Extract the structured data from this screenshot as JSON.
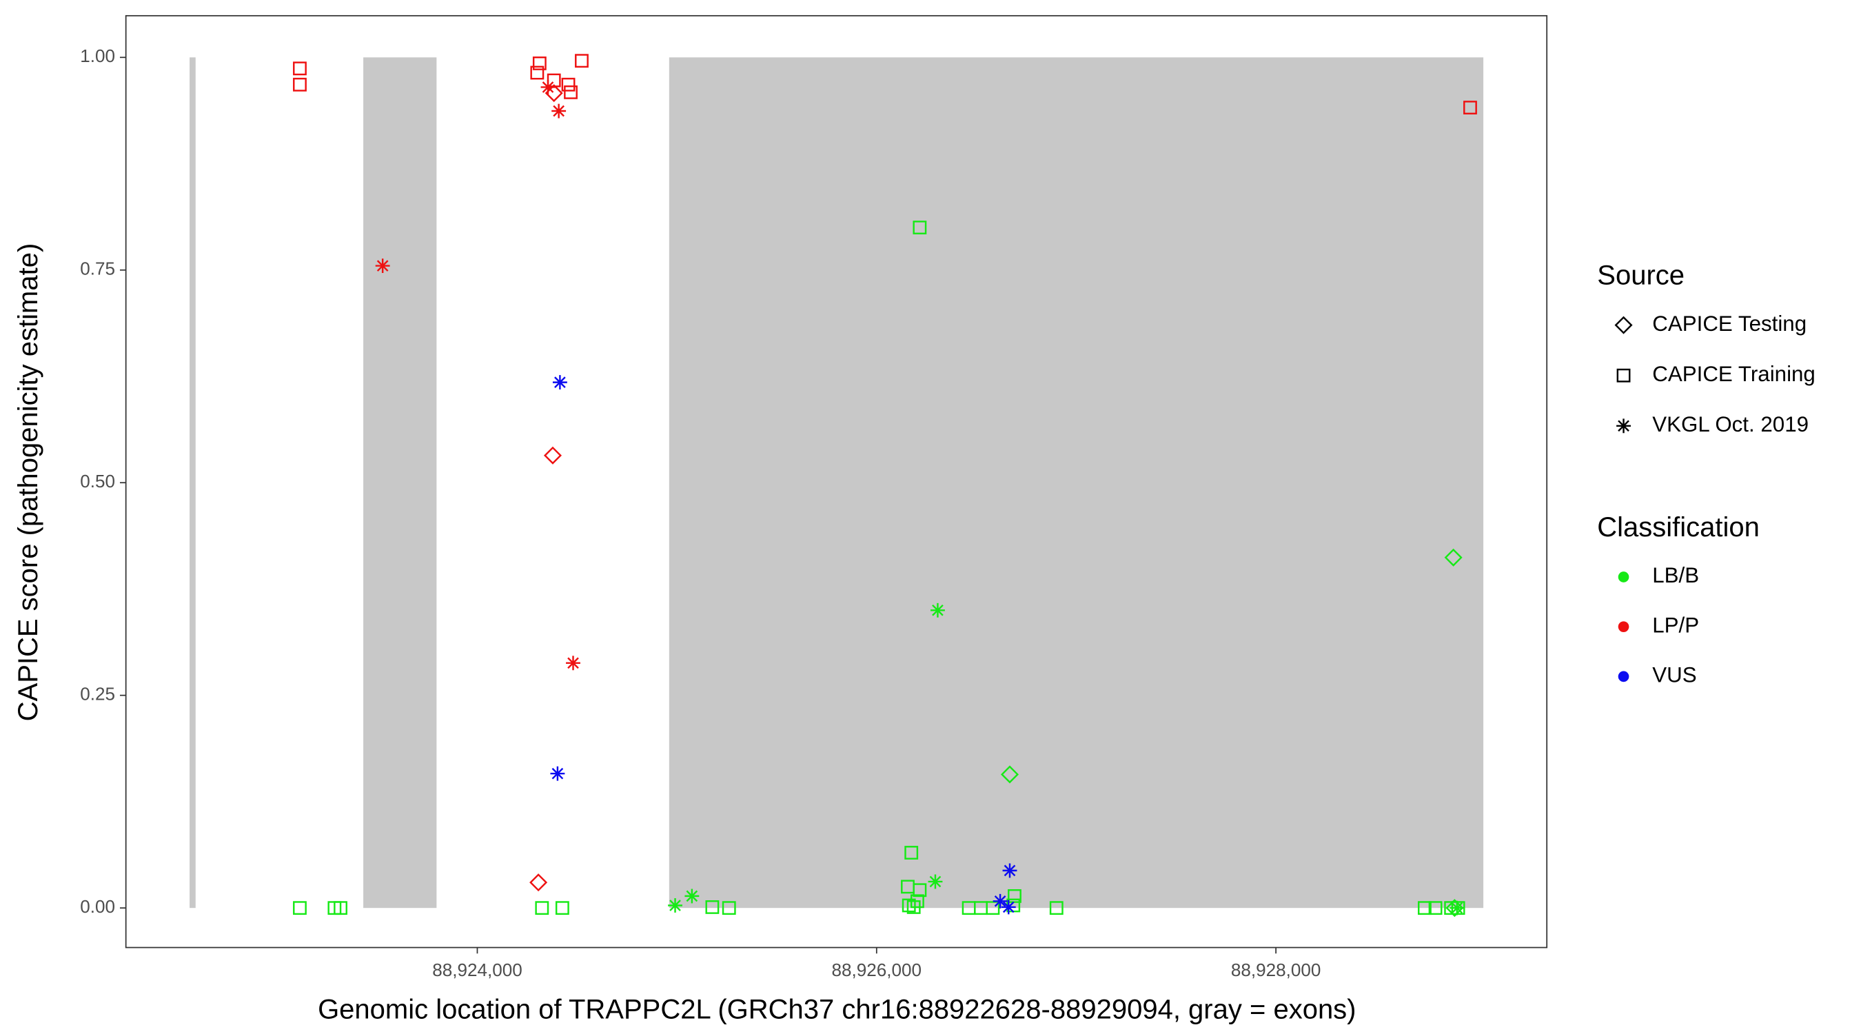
{
  "chart_data": {
    "type": "scatter",
    "x_label": "Genomic location of TRAPPC2L (GRCh37 chr16:88922628-88929094, gray = exons)",
    "y_label": "CAPICE score (pathogenicity estimate)",
    "xlim": [
      88922240,
      88929357
    ],
    "ylim": [
      -0.0465,
      1.049
    ],
    "xticks": [
      {
        "value": 88924000,
        "label": "88,924,000"
      },
      {
        "value": 88926000,
        "label": "88,926,000"
      },
      {
        "value": 88928000,
        "label": "88,928,000"
      }
    ],
    "yticks": [
      {
        "value": 0,
        "label": "0.00"
      },
      {
        "value": 0.25,
        "label": "0.25"
      },
      {
        "value": 0.5,
        "label": "0.50"
      },
      {
        "value": 0.75,
        "label": "0.75"
      },
      {
        "value": 1,
        "label": "1.00"
      }
    ],
    "exons": [
      [
        88922559,
        88922589
      ],
      [
        88923429,
        88923796
      ],
      [
        88924961,
        88929039
      ]
    ],
    "exon_color": "#c8c8c8",
    "legend": {
      "source": {
        "title": "Source",
        "items": [
          {
            "label": "CAPICE Testing",
            "shape": "diamond"
          },
          {
            "label": "CAPICE Training",
            "shape": "square"
          },
          {
            "label": "VKGL Oct. 2019",
            "shape": "asterisk"
          }
        ]
      },
      "classification": {
        "title": "Classification",
        "items": [
          {
            "label": "LB/B",
            "color": "#16e916"
          },
          {
            "label": "LP/P",
            "color": "#ee1111"
          },
          {
            "label": "VUS",
            "color": "#0c0cf0"
          }
        ]
      }
    },
    "series": [
      {
        "source": "CAPICE Training",
        "classification": "LB/B",
        "x": [
          88923111,
          88923285,
          88923315,
          88924324,
          88924426,
          88925177,
          88925261,
          88926216,
          88926174,
          88926156,
          88926216,
          88926204,
          88926162,
          88926186,
          88926462,
          88926522,
          88926582,
          88926691,
          88926685,
          88926901,
          88928745,
          88928799,
          88928877,
          88928913
        ],
        "values": [
          0,
          0,
          0,
          0,
          0,
          0.001,
          0,
          0.8,
          0.065,
          0.025,
          0.021,
          0.008,
          0.003,
          0.001,
          0,
          0,
          0,
          0.014,
          0.003,
          0,
          0,
          0,
          0,
          0
        ]
      },
      {
        "source": "CAPICE Testing",
        "classification": "LB/B",
        "x": [
          88926667,
          88928889,
          88928895
        ],
        "values": [
          0.157,
          0.412,
          0
        ]
      },
      {
        "source": "VKGL Oct. 2019",
        "classification": "LB/B",
        "x": [
          88926306,
          88926294,
          88924991,
          88925075,
          88928907
        ],
        "values": [
          0.35,
          0.031,
          0.003,
          0.014,
          0
        ]
      },
      {
        "source": "CAPICE Training",
        "classification": "LP/P",
        "x": [
          88923111,
          88923111,
          88924300,
          88924312,
          88924384,
          88924456,
          88924468,
          88924523,
          88928973
        ],
        "values": [
          0.987,
          0.968,
          0.982,
          0.993,
          0.973,
          0.968,
          0.959,
          0.996,
          0.941
        ]
      },
      {
        "source": "CAPICE Testing",
        "classification": "LP/P",
        "x": [
          88924384,
          88924378,
          88924306
        ],
        "values": [
          0.958,
          0.532,
          0.03
        ]
      },
      {
        "source": "VKGL Oct. 2019",
        "classification": "LP/P",
        "x": [
          88924354,
          88924408,
          88923526,
          88924480
        ],
        "values": [
          0.965,
          0.937,
          0.755,
          0.288
        ]
      },
      {
        "source": "VKGL Oct. 2019",
        "classification": "VUS",
        "x": [
          88924414,
          88924402,
          88926667,
          88926619,
          88926661
        ],
        "values": [
          0.618,
          0.158,
          0.044,
          0.008,
          0.001
        ]
      }
    ]
  }
}
